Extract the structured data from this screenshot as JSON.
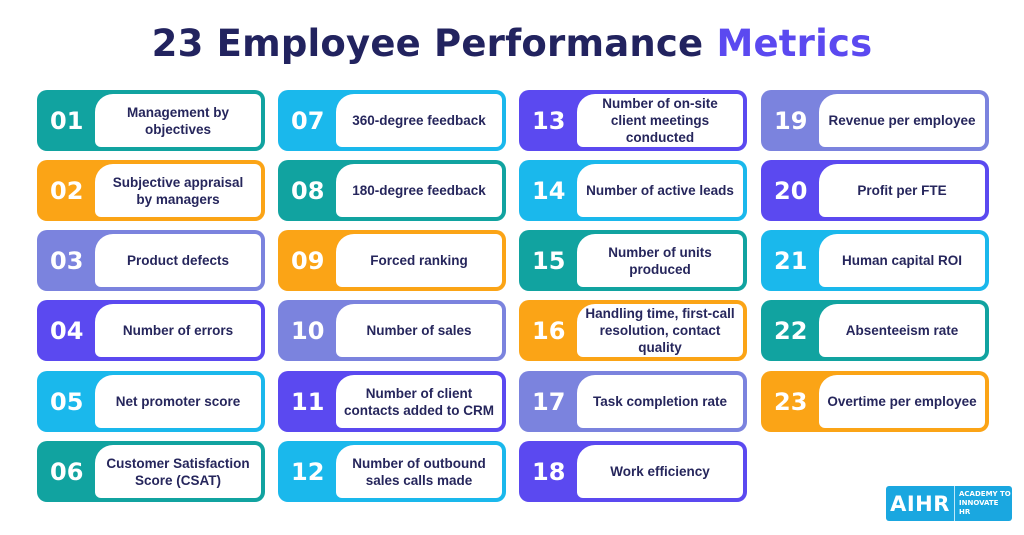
{
  "title": {
    "main": "23 Employee Performance",
    "accent": "Metrics"
  },
  "colors": {
    "teal": "#11a3a0",
    "orange": "#fba416",
    "lavender": "#7b83de",
    "indigo": "#5b49f0",
    "sky": "#1ab8ec"
  },
  "metrics": [
    {
      "num": "01",
      "label": "Management by objectives",
      "color": "teal"
    },
    {
      "num": "02",
      "label": "Subjective appraisal by managers",
      "color": "orange"
    },
    {
      "num": "03",
      "label": "Product defects",
      "color": "lavender"
    },
    {
      "num": "04",
      "label": "Number of errors",
      "color": "indigo"
    },
    {
      "num": "05",
      "label": "Net promoter score",
      "color": "sky"
    },
    {
      "num": "06",
      "label": "Customer Satisfaction Score (CSAT)",
      "color": "teal"
    },
    {
      "num": "07",
      "label": "360-degree feedback",
      "color": "sky"
    },
    {
      "num": "08",
      "label": "180-degree feedback",
      "color": "teal"
    },
    {
      "num": "09",
      "label": "Forced ranking",
      "color": "orange"
    },
    {
      "num": "10",
      "label": "Number of sales",
      "color": "lavender"
    },
    {
      "num": "11",
      "label": "Number of client contacts added to CRM",
      "color": "indigo"
    },
    {
      "num": "12",
      "label": "Number of outbound sales calls made",
      "color": "sky"
    },
    {
      "num": "13",
      "label": "Number of on-site client meetings conducted",
      "color": "indigo"
    },
    {
      "num": "14",
      "label": "Number of active leads",
      "color": "sky"
    },
    {
      "num": "15",
      "label": "Number of units produced",
      "color": "teal"
    },
    {
      "num": "16",
      "label": "Handling time, first-call resolution, contact quality",
      "color": "orange"
    },
    {
      "num": "17",
      "label": "Task completion rate",
      "color": "lavender"
    },
    {
      "num": "18",
      "label": "Work efficiency",
      "color": "indigo"
    },
    {
      "num": "19",
      "label": "Revenue per employee",
      "color": "lavender"
    },
    {
      "num": "20",
      "label": "Profit per FTE",
      "color": "indigo"
    },
    {
      "num": "21",
      "label": "Human capital ROI",
      "color": "sky"
    },
    {
      "num": "22",
      "label": "Absenteeism rate",
      "color": "teal"
    },
    {
      "num": "23",
      "label": "Overtime per employee",
      "color": "orange"
    }
  ],
  "logo": {
    "mark": "AIHR",
    "tag_line1": "ACADEMY TO",
    "tag_line2": "INNOVATE HR"
  }
}
